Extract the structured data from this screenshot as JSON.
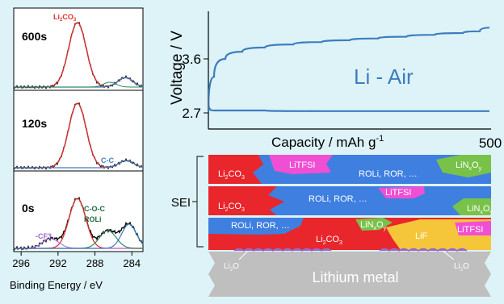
{
  "xps": {
    "panels": [
      {
        "label": "600s",
        "peak_label": "Li2CO3"
      },
      {
        "label": "120s",
        "peak_label": "C-C"
      },
      {
        "label": "0s",
        "peak_labels": [
          "-CF3",
          "C-O-C",
          "ROLi"
        ]
      }
    ],
    "x_ticks": [
      "296",
      "292",
      "288",
      "284"
    ],
    "x_axis_title": "Binding Energy / eV"
  },
  "voltage_chart": {
    "ylabel": "Voltage / V",
    "xlabel": "Capacity / mAh g",
    "xlabel_sup": "-1",
    "y_ticks": [
      "3.6",
      "2.7"
    ],
    "x_tick_end": "500",
    "annotation": "Li - Air"
  },
  "chart_data": [
    {
      "type": "line",
      "title": "",
      "xlabel": "Binding Energy / eV",
      "ylabel": "",
      "x_ticks": [
        296,
        292,
        288,
        284
      ],
      "xlim": [
        296.8,
        282.8
      ],
      "panels": [
        {
          "name": "600s",
          "peaks": [
            {
              "label": "Li2CO3",
              "center_eV": 289.9
            },
            {
              "center_eV": 284.7
            }
          ]
        },
        {
          "name": "120s",
          "peaks": [
            {
              "center_eV": 289.9
            },
            {
              "label": "C-C",
              "center_eV": 284.6
            }
          ]
        },
        {
          "name": "0s",
          "peaks": [
            {
              "label": "-CF3",
              "center_eV": 292.8
            },
            {
              "center_eV": 289.9
            },
            {
              "label": "C-O-C",
              "center_eV": 286.6
            },
            {
              "label": "ROLi",
              "center_eV": 284.3
            }
          ]
        }
      ]
    },
    {
      "type": "line",
      "title": "",
      "xlabel": "Capacity / mAh g-1",
      "ylabel": "Voltage / V",
      "y_ticks": [
        3.6,
        2.7
      ],
      "x_ticks": [
        500
      ],
      "xlim": [
        0,
        500
      ],
      "ylim": [
        2.55,
        4.2
      ],
      "series": [
        {
          "x": [
            0,
            10,
            30,
            60,
            100,
            150,
            200,
            250,
            300,
            350,
            400,
            450,
            480,
            500
          ],
          "y": [
            2.72,
            3.3,
            3.6,
            3.72,
            3.79,
            3.84,
            3.88,
            3.91,
            3.94,
            3.97,
            4.0,
            4.03,
            4.06,
            4.12
          ]
        },
        {
          "x": [
            0,
            3,
            10,
            50,
            100,
            200,
            300,
            400,
            500
          ],
          "y": [
            2.95,
            2.76,
            2.74,
            2.74,
            2.74,
            2.73,
            2.73,
            2.73,
            2.73
          ]
        }
      ]
    }
  ],
  "sei": {
    "label": "SEI",
    "substrate_label": "Lithium metal",
    "layer1": {
      "li2co3": "Li2CO3",
      "litfsi": "LiTFSI",
      "roli": "ROLi, ROR, …",
      "linxoy": "LiNxOy"
    },
    "layer2": {
      "li2co3": "Li2CO3",
      "roli": "ROLi, ROR, …",
      "litfsi": "LiTFSI",
      "linxoy": "LiNxOy"
    },
    "layer3": {
      "roli": "ROLi, ROR, …",
      "linxoy": "LiNxOy",
      "li2co3": "Li2CO3",
      "lif": "LiF",
      "litfsi": "LiTFSI"
    },
    "li2o_labels": [
      "Li2O",
      "Li2O"
    ]
  },
  "colors": {
    "background": "#ddf3f7",
    "curve_blue": "#3d7dbf",
    "fit_red": "#e0312f",
    "layer_blue": "#3f7fe0",
    "li2co3_red": "#e8262b",
    "litfsi_magenta": "#f04fd4",
    "linxoy_green": "#79c24a",
    "lif_yellow": "#f5c63a",
    "substrate_gray": "#bfbfbf",
    "li2o_purple": "#9a66c8"
  }
}
